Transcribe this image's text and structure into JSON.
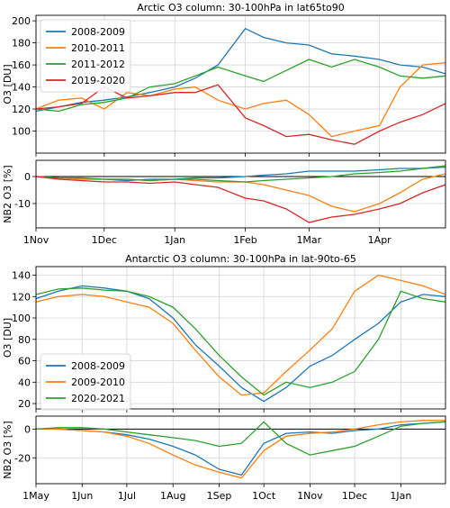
{
  "chart_data": [
    {
      "type": "line",
      "title": "Arctic O3 column: 30-100hPa in lat65to90",
      "ylabel": "O3 [DU]",
      "ylim": [
        80,
        205
      ],
      "yticks": [
        100,
        120,
        140,
        160,
        180,
        200
      ],
      "xlim": [
        0,
        180
      ],
      "xticks": [
        0,
        30,
        61,
        92,
        120,
        151
      ],
      "xticklabels": [
        "1Nov",
        "1Dec",
        "1Jan",
        "1Feb",
        "1Mar",
        "1Apr"
      ],
      "legend": "top-left",
      "grid": true,
      "x": [
        0,
        10,
        20,
        30,
        40,
        50,
        61,
        70,
        80,
        92,
        100,
        110,
        120,
        130,
        140,
        151,
        160,
        170,
        180
      ],
      "series": [
        {
          "name": "2008-2009",
          "color": "#1f77b4",
          "values": [
            118,
            122,
            126,
            128,
            131,
            135,
            140,
            148,
            160,
            193,
            185,
            180,
            178,
            170,
            168,
            165,
            160,
            158,
            152
          ]
        },
        {
          "name": "2010-2011",
          "color": "#ff7f0e",
          "values": [
            120,
            128,
            130,
            120,
            135,
            132,
            138,
            140,
            128,
            120,
            125,
            128,
            115,
            95,
            100,
            105,
            140,
            160,
            162
          ]
        },
        {
          "name": "2011-2012",
          "color": "#2ca02c",
          "values": [
            120,
            118,
            124,
            126,
            130,
            140,
            143,
            150,
            158,
            150,
            145,
            155,
            165,
            158,
            165,
            158,
            150,
            148,
            150
          ]
        },
        {
          "name": "2019-2020",
          "color": "#d62728",
          "values": [
            120,
            122,
            125,
            140,
            130,
            132,
            135,
            135,
            142,
            112,
            105,
            95,
            97,
            92,
            88,
            100,
            108,
            115,
            125
          ]
        }
      ]
    },
    {
      "type": "line",
      "ylabel": "NB2 O3 [%]",
      "ylim": [
        -19,
        6
      ],
      "yticks": [
        -10,
        0
      ],
      "xlim": [
        0,
        180
      ],
      "xticks": [
        0,
        30,
        61,
        92,
        120,
        151
      ],
      "xticklabels": [
        "1Nov",
        "1Dec",
        "1Jan",
        "1Feb",
        "1Mar",
        "1Apr"
      ],
      "grid": true,
      "x": [
        0,
        10,
        20,
        30,
        40,
        50,
        61,
        70,
        80,
        92,
        100,
        110,
        120,
        130,
        140,
        151,
        160,
        170,
        180
      ],
      "series": [
        {
          "name": "2008-2009",
          "color": "#1f77b4",
          "values": [
            0,
            -0.5,
            -1,
            -1,
            -1.5,
            -1,
            -1,
            -0.5,
            -0.5,
            0,
            0.5,
            1,
            2,
            2,
            2,
            2.5,
            3,
            3,
            3.5
          ]
        },
        {
          "name": "2010-2011",
          "color": "#ff7f0e",
          "values": [
            0,
            -0.5,
            -1,
            -1,
            -1,
            -1.5,
            -1,
            -1.5,
            -2,
            -2,
            -3,
            -5,
            -7,
            -11,
            -13,
            -10,
            -6,
            -1,
            1
          ]
        },
        {
          "name": "2011-2012",
          "color": "#2ca02c",
          "values": [
            0,
            -0.5,
            -0.5,
            -1,
            -1,
            -1.5,
            -1,
            -1,
            -1.5,
            -2,
            -1.5,
            -1,
            -0.5,
            0,
            1,
            1.5,
            2,
            3,
            4
          ]
        },
        {
          "name": "2019-2020",
          "color": "#d62728",
          "values": [
            0,
            -1,
            -1.5,
            -2,
            -2,
            -2.5,
            -2,
            -3,
            -4,
            -8,
            -9,
            -12,
            -17,
            -15,
            -14,
            -12,
            -10,
            -6,
            -3
          ]
        }
      ]
    },
    {
      "type": "line",
      "title": "Antarctic O3 column: 30-100hPa in lat-90to-65",
      "ylabel": "O3 [DU]",
      "ylim": [
        15,
        148
      ],
      "yticks": [
        20,
        40,
        60,
        80,
        100,
        120,
        140
      ],
      "xlim": [
        0,
        275
      ],
      "xticks": [
        0,
        31,
        61,
        92,
        123,
        153,
        184,
        214,
        245
      ],
      "xticklabels": [
        "1May",
        "1Jun",
        "1Jul",
        "1Aug",
        "1Sep",
        "1Oct",
        "1Nov",
        "1Dec",
        "1Jan"
      ],
      "legend": "bottom-left",
      "grid": true,
      "x": [
        0,
        15,
        31,
        46,
        61,
        76,
        92,
        107,
        123,
        138,
        153,
        168,
        184,
        199,
        214,
        230,
        245,
        260,
        275
      ],
      "series": [
        {
          "name": "2008-2009",
          "color": "#1f77b4",
          "values": [
            118,
            125,
            130,
            128,
            125,
            118,
            100,
            75,
            55,
            35,
            22,
            35,
            55,
            65,
            80,
            95,
            115,
            122,
            120
          ]
        },
        {
          "name": "2009-2010",
          "color": "#ff7f0e",
          "values": [
            115,
            120,
            122,
            120,
            115,
            110,
            95,
            70,
            45,
            28,
            30,
            50,
            70,
            90,
            125,
            140,
            135,
            130,
            122
          ]
        },
        {
          "name": "2020-2021",
          "color": "#2ca02c",
          "values": [
            122,
            127,
            128,
            126,
            125,
            120,
            110,
            90,
            65,
            45,
            28,
            40,
            35,
            40,
            50,
            80,
            125,
            118,
            115
          ]
        }
      ]
    },
    {
      "type": "line",
      "ylabel": "NB2 O3 [%]",
      "ylim": [
        -38,
        9
      ],
      "yticks": [
        -20,
        0
      ],
      "xlim": [
        0,
        275
      ],
      "xticks": [
        0,
        31,
        61,
        92,
        123,
        153,
        184,
        214,
        245
      ],
      "xticklabels": [
        "1May",
        "1Jun",
        "1Jul",
        "1Aug",
        "1Sep",
        "1Oct",
        "1Nov",
        "1Dec",
        "1Jan"
      ],
      "grid": true,
      "x": [
        0,
        15,
        31,
        46,
        61,
        76,
        92,
        107,
        123,
        138,
        153,
        168,
        184,
        199,
        214,
        230,
        245,
        260,
        275
      ],
      "series": [
        {
          "name": "2008-2009",
          "color": "#1f77b4",
          "values": [
            0,
            0,
            -1,
            -2,
            -4,
            -7,
            -12,
            -18,
            -28,
            -32,
            -10,
            -3,
            -2,
            -3,
            -1,
            0,
            3,
            4,
            5
          ]
        },
        {
          "name": "2009-2010",
          "color": "#ff7f0e",
          "values": [
            0,
            0,
            -1,
            -2,
            -5,
            -10,
            -18,
            -25,
            -30,
            -34,
            -15,
            -5,
            -3,
            -2,
            0,
            3,
            5,
            6,
            6
          ]
        },
        {
          "name": "2020-2021",
          "color": "#2ca02c",
          "values": [
            0,
            1,
            1,
            0,
            -2,
            -4,
            -6,
            -8,
            -12,
            -10,
            5,
            -10,
            -18,
            -15,
            -12,
            -5,
            2,
            4,
            5
          ]
        }
      ]
    }
  ]
}
